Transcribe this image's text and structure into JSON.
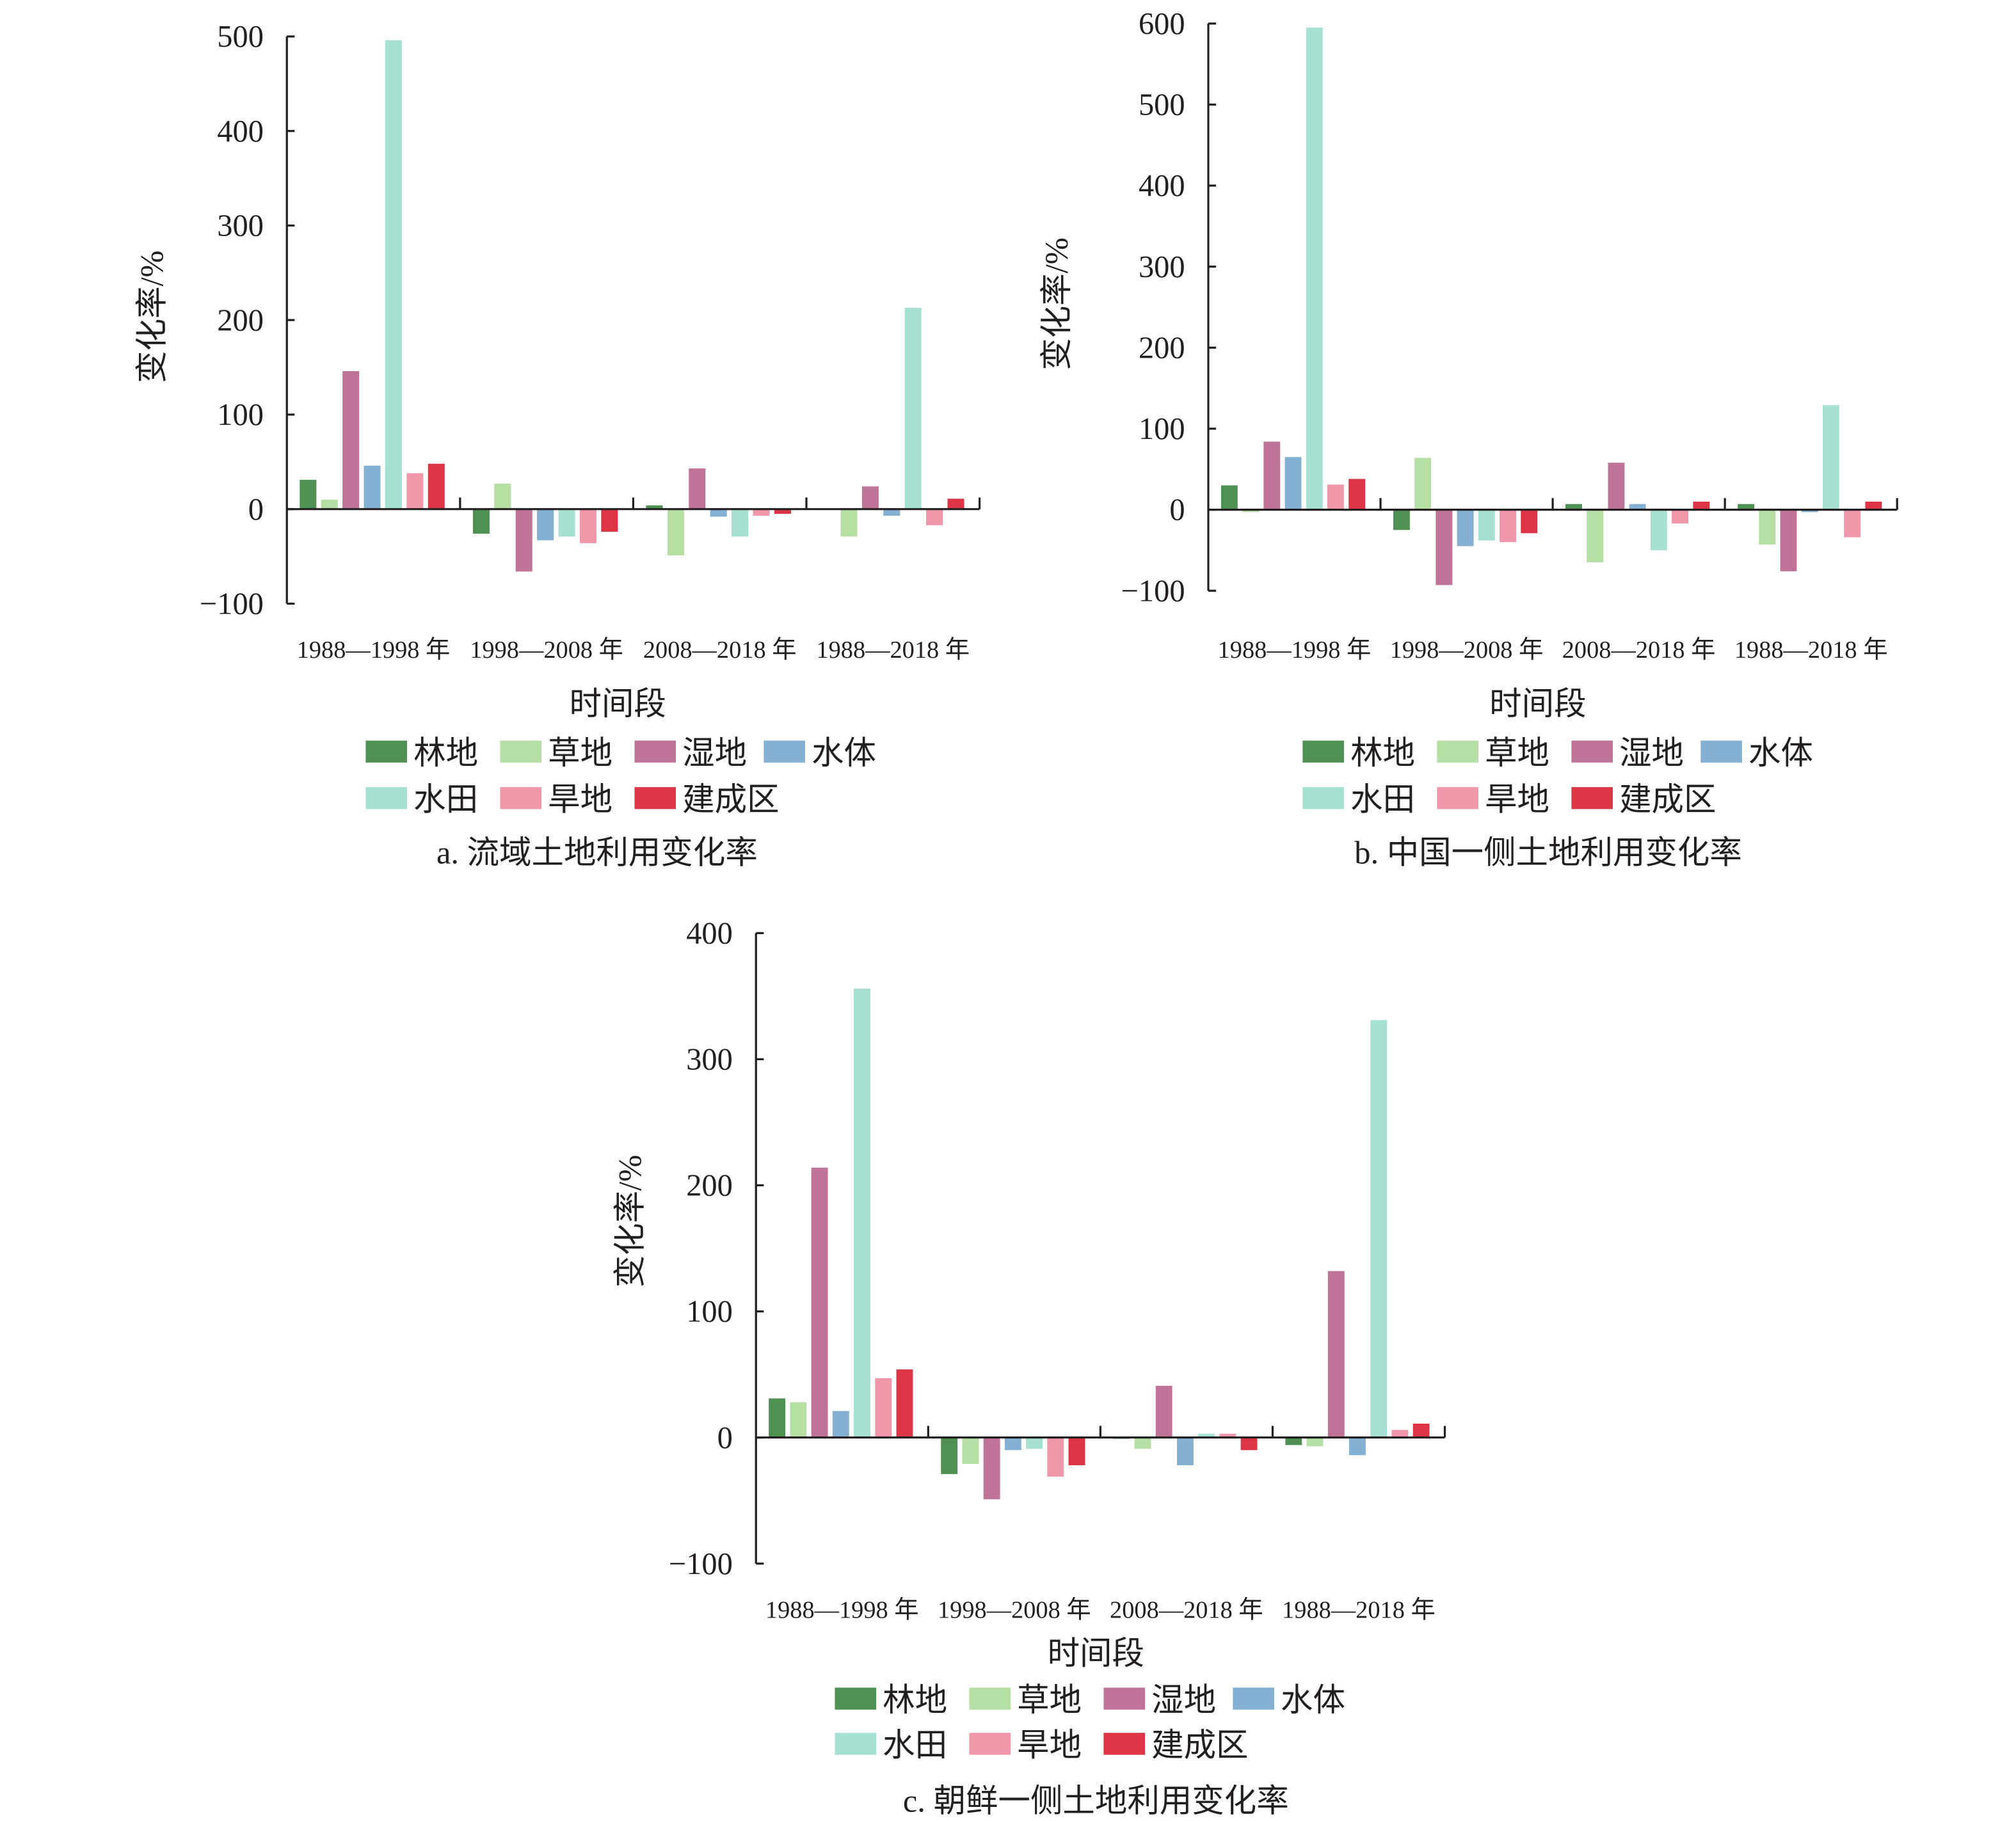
{
  "legend": {
    "colors": [
      "#4f9153",
      "#b5dfa3",
      "#c07398",
      "#84b0d3",
      "#a5e0d3",
      "#f197aa",
      "#de3546"
    ]
  },
  "chart_data": [
    {
      "type": "bar",
      "caption": "a. 流域土地利用变化率",
      "xlabel": "时间段",
      "ylabel": "变化率/%",
      "ylim": [
        -100,
        500
      ],
      "yticks": [
        -100,
        0,
        100,
        200,
        300,
        400,
        500
      ],
      "ytick_labels": [
        "−100",
        "0",
        "100",
        "200",
        "300",
        "400",
        "500"
      ],
      "legend_position": "bottom",
      "categories": [
        "1988—1998 年",
        "1998—2008 年",
        "2008—2018 年",
        "1988—2018 年"
      ],
      "series": [
        {
          "name": "林地",
          "values": [
            31,
            -26,
            4,
            0
          ]
        },
        {
          "name": "草地",
          "values": [
            10,
            27,
            -49,
            -29
          ]
        },
        {
          "name": "湿地",
          "values": [
            146,
            -66,
            43,
            24
          ]
        },
        {
          "name": "水体",
          "values": [
            46,
            -33,
            -8,
            -7
          ]
        },
        {
          "name": "水田",
          "values": [
            496,
            -29,
            -29,
            213
          ]
        },
        {
          "name": "旱地",
          "values": [
            38,
            -36,
            -7,
            -17
          ]
        },
        {
          "name": "建成区",
          "values": [
            48,
            -24,
            -5,
            11
          ]
        }
      ]
    },
    {
      "type": "bar",
      "caption": "b. 中国一侧土地利用变化率",
      "xlabel": "时间段",
      "ylabel": "变化率/%",
      "ylim": [
        -100,
        600
      ],
      "yticks": [
        -100,
        0,
        100,
        200,
        300,
        400,
        500,
        600
      ],
      "ytick_labels": [
        "−100",
        "0",
        "100",
        "200",
        "300",
        "400",
        "500",
        "600"
      ],
      "legend_position": "bottom",
      "categories": [
        "1988—1998 年",
        "1998—2008 年",
        "2008—2018 年",
        "1988—2018 年"
      ],
      "series": [
        {
          "name": "林地",
          "values": [
            30,
            -25,
            7,
            7
          ]
        },
        {
          "name": "草地",
          "values": [
            -3,
            64,
            -65,
            -43
          ]
        },
        {
          "name": "湿地",
          "values": [
            84,
            -93,
            58,
            -76
          ]
        },
        {
          "name": "水体",
          "values": [
            65,
            -45,
            7,
            -3
          ]
        },
        {
          "name": "水田",
          "values": [
            595,
            -38,
            -50,
            129
          ]
        },
        {
          "name": "旱地",
          "values": [
            31,
            -40,
            -17,
            -34
          ]
        },
        {
          "name": "建成区",
          "values": [
            38,
            -29,
            10,
            10
          ]
        }
      ]
    },
    {
      "type": "bar",
      "caption": "c. 朝鲜一侧土地利用变化率",
      "xlabel": "时间段",
      "ylabel": "变化率/%",
      "ylim": [
        -100,
        400
      ],
      "yticks": [
        -100,
        0,
        100,
        200,
        300,
        400
      ],
      "ytick_labels": [
        "−100",
        "0",
        "100",
        "200",
        "300",
        "400"
      ],
      "legend_position": "bottom",
      "categories": [
        "1988—1998 年",
        "1998—2008 年",
        "2008—2018 年",
        "1988—2018 年"
      ],
      "series": [
        {
          "name": "林地",
          "values": [
            31,
            -29,
            -1,
            -6
          ]
        },
        {
          "name": "草地",
          "values": [
            28,
            -21,
            -9,
            -7
          ]
        },
        {
          "name": "湿地",
          "values": [
            214,
            -49,
            41,
            132
          ]
        },
        {
          "name": "水体",
          "values": [
            21,
            -10,
            -22,
            -14
          ]
        },
        {
          "name": "水田",
          "values": [
            356,
            -9,
            3,
            331
          ]
        },
        {
          "name": "旱地",
          "values": [
            47,
            -31,
            3,
            6
          ]
        },
        {
          "name": "建成区",
          "values": [
            54,
            -22,
            -10,
            11
          ]
        }
      ]
    }
  ]
}
